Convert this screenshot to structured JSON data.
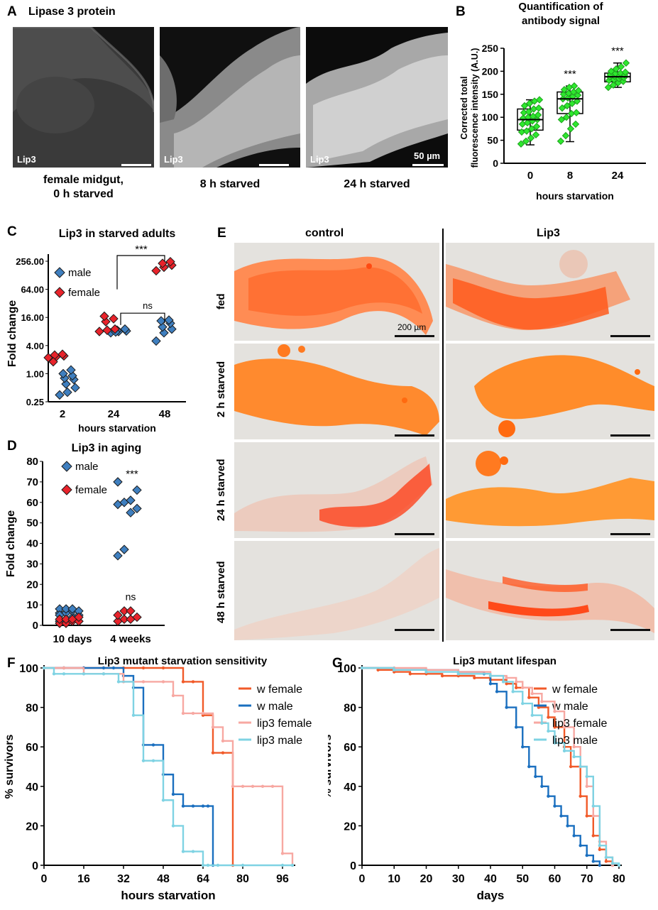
{
  "panelA": {
    "letter": "A",
    "title": "Lipase 3 protein",
    "image_tag": "Lip3",
    "scale_label": "50 µm",
    "captions": [
      "female midgut,",
      "0 h starved",
      "8 h starved",
      "24 h starved"
    ]
  },
  "panelE": {
    "letter": "E",
    "col_control": "control",
    "col_lip3": "Lip3",
    "rows": [
      "fed",
      "2 h starved",
      "24 h starved",
      "48 h starved"
    ],
    "scale_label": "200 µm"
  },
  "colors": {
    "green": "#2ee82e",
    "blue": "#3f7fbf",
    "red": "#e8232b",
    "w_female": "#f15a29",
    "w_male": "#1a6fbf",
    "lip3_female": "#f7a8a2",
    "lip3_male": "#7fd3e3"
  },
  "chart_data": [
    {
      "id": "B",
      "letter": "B",
      "type": "box",
      "title": "Quantification of antibody signal",
      "title_lines": [
        "Quantification of",
        "antibody signal"
      ],
      "ylabel_lines": [
        "Corrected total",
        "fluorescence intensity (A.U.)"
      ],
      "xlabel": "hours starvation",
      "categories": [
        "0",
        "8",
        "24"
      ],
      "ylim": [
        0,
        250
      ],
      "yticks": [
        0,
        50,
        100,
        150,
        200,
        250
      ],
      "boxes": [
        {
          "min": 40,
          "q1": 72,
          "median": 95,
          "q3": 118,
          "max": 138
        },
        {
          "min": 47,
          "q1": 108,
          "median": 140,
          "q3": 155,
          "max": 168
        },
        {
          "min": 165,
          "q1": 177,
          "median": 188,
          "q3": 196,
          "max": 218
        }
      ],
      "points": [
        [
          42,
          48,
          55,
          62,
          68,
          70,
          75,
          80,
          85,
          88,
          92,
          95,
          98,
          100,
          102,
          105,
          110,
          112,
          118,
          120,
          125,
          130,
          135,
          138
        ],
        [
          48,
          60,
          75,
          85,
          95,
          100,
          108,
          110,
          120,
          125,
          130,
          135,
          140,
          142,
          145,
          148,
          150,
          152,
          155,
          158,
          160,
          165,
          168
        ],
        [
          165,
          170,
          175,
          178,
          180,
          182,
          184,
          186,
          188,
          189,
          190,
          192,
          193,
          195,
          196,
          198,
          200,
          205,
          210,
          218
        ]
      ],
      "annotations": [
        "",
        "***",
        "***"
      ]
    },
    {
      "id": "C",
      "letter": "C",
      "type": "scatter",
      "title": "Lip3 in starved adults",
      "ylabel": "Fold change",
      "xlabel": "hours starvation",
      "yscale": "log2",
      "ylim": [
        0.25,
        256
      ],
      "ytick_labels": [
        "0.25",
        "1.00",
        "4.00",
        "16.00",
        "64.00",
        "256.00"
      ],
      "yticks": [
        0.25,
        1,
        4,
        16,
        64,
        256
      ],
      "categories": [
        "2",
        "24",
        "48"
      ],
      "series": [
        {
          "name": "male",
          "values": [
            [
              0.35,
              0.4,
              0.5,
              0.6,
              0.75,
              0.8,
              0.9,
              1.0,
              1.2
            ],
            [
              7.5,
              8.0,
              8.2,
              8.5,
              9.0,
              7.8
            ],
            [
              5.0,
              7.5,
              9.0,
              10.0,
              12.0,
              13.5,
              14.0
            ]
          ]
        },
        {
          "name": "female",
          "values": [
            [
              2.2,
              2.3,
              2.4,
              2.5,
              2.6,
              1.8
            ],
            [
              8.0,
              8.5,
              9.0,
              13.0,
              15.0,
              17.0
            ],
            [
              160,
              190,
              210,
              230,
              250
            ]
          ]
        }
      ],
      "legend": [
        "male",
        "female"
      ],
      "annotations": [
        "***",
        "ns"
      ]
    },
    {
      "id": "D",
      "letter": "D",
      "type": "scatter",
      "title": "Lip3 in aging",
      "ylabel": "Fold change",
      "xlabel": "",
      "ylim": [
        0,
        80
      ],
      "yticks": [
        0,
        10,
        20,
        30,
        40,
        50,
        60,
        70,
        80
      ],
      "categories": [
        "10 days",
        "4 weeks"
      ],
      "series": [
        {
          "name": "male",
          "values": [
            [
              2,
              3,
              4,
              5,
              6,
              6,
              7,
              7,
              8,
              8,
              8,
              2,
              5
            ],
            [
              34,
              37,
              55,
              57,
              59,
              60,
              61,
              66,
              70
            ]
          ]
        },
        {
          "name": "female",
          "values": [
            [
              1,
              1,
              2,
              2,
              3,
              3,
              3,
              4
            ],
            [
              2,
              3,
              3,
              4,
              5,
              7,
              7
            ]
          ]
        }
      ],
      "legend": [
        "male",
        "female"
      ],
      "annotations": [
        "***",
        "ns"
      ]
    },
    {
      "id": "F",
      "letter": "F",
      "type": "line",
      "title": "Lip3 mutant starvation sensitivity",
      "ylabel": "% survivors",
      "xlabel": "hours starvation",
      "xlim": [
        0,
        100
      ],
      "ylim": [
        0,
        100
      ],
      "xticks": [
        0,
        16,
        32,
        48,
        64,
        80,
        96
      ],
      "yticks": [
        0,
        20,
        40,
        60,
        80,
        100
      ],
      "series": [
        {
          "name": "w female",
          "x": [
            0,
            8,
            16,
            24,
            32,
            40,
            48,
            56,
            60,
            64,
            68,
            72,
            76
          ],
          "y": [
            100,
            100,
            100,
            100,
            100,
            100,
            100,
            93,
            93,
            76,
            57,
            57,
            0
          ]
        },
        {
          "name": "w male",
          "x": [
            0,
            8,
            16,
            24,
            28,
            32,
            36,
            40,
            44,
            48,
            52,
            56,
            60,
            64,
            66,
            68
          ],
          "y": [
            100,
            100,
            100,
            100,
            100,
            96,
            90,
            61,
            61,
            46,
            36,
            30,
            30,
            30,
            30,
            0
          ]
        },
        {
          "name": "lip3 female",
          "x": [
            0,
            8,
            16,
            24,
            32,
            40,
            48,
            52,
            56,
            60,
            64,
            68,
            72,
            76,
            80,
            84,
            88,
            92,
            96,
            100
          ],
          "y": [
            100,
            100,
            97,
            97,
            93,
            93,
            93,
            86,
            77,
            77,
            77,
            70,
            63,
            40,
            40,
            40,
            40,
            40,
            6,
            0
          ]
        },
        {
          "name": "lip3 male",
          "x": [
            0,
            4,
            8,
            16,
            24,
            30,
            36,
            40,
            44,
            48,
            52,
            56,
            60,
            64,
            66,
            70,
            80,
            96,
            100
          ],
          "y": [
            100,
            97,
            97,
            97,
            97,
            93,
            76,
            53,
            53,
            33,
            20,
            7,
            7,
            0,
            0,
            0,
            0,
            0,
            0
          ]
        }
      ]
    },
    {
      "id": "G",
      "letter": "G",
      "type": "line",
      "title": "Lip3 mutant lifespan",
      "ylabel": "% survivors",
      "xlabel": "days",
      "xlim": [
        0,
        80
      ],
      "ylim": [
        0,
        100
      ],
      "xticks": [
        0,
        10,
        20,
        30,
        40,
        50,
        60,
        70,
        80
      ],
      "yticks": [
        0,
        20,
        40,
        60,
        80,
        100
      ],
      "series": [
        {
          "name": "w female",
          "x": [
            0,
            5,
            10,
            15,
            20,
            25,
            30,
            35,
            40,
            45,
            48,
            52,
            55,
            58,
            60,
            63,
            65,
            68,
            70,
            72,
            74,
            76,
            78
          ],
          "y": [
            100,
            99,
            98,
            97,
            97,
            96,
            96,
            95,
            94,
            92,
            90,
            85,
            80,
            75,
            70,
            60,
            50,
            35,
            25,
            15,
            8,
            2,
            0
          ]
        },
        {
          "name": "w male",
          "x": [
            0,
            10,
            20,
            30,
            38,
            40,
            42,
            45,
            48,
            50,
            52,
            54,
            56,
            58,
            60,
            62,
            64,
            66,
            68,
            70,
            72,
            74
          ],
          "y": [
            100,
            99,
            99,
            98,
            97,
            92,
            88,
            80,
            70,
            60,
            50,
            45,
            40,
            35,
            30,
            25,
            20,
            15,
            10,
            5,
            2,
            0
          ]
        },
        {
          "name": "lip3 female",
          "x": [
            0,
            10,
            20,
            30,
            40,
            45,
            48,
            50,
            53,
            56,
            60,
            63,
            66,
            68,
            70,
            72,
            74,
            76,
            78
          ],
          "y": [
            100,
            100,
            99,
            98,
            96,
            95,
            93,
            90,
            87,
            83,
            78,
            70,
            60,
            50,
            40,
            25,
            12,
            4,
            0
          ]
        },
        {
          "name": "lip3 male",
          "x": [
            0,
            10,
            20,
            30,
            40,
            44,
            47,
            50,
            53,
            56,
            58,
            60,
            63,
            66,
            68,
            70,
            72,
            74,
            76,
            78,
            80
          ],
          "y": [
            100,
            99,
            98,
            97,
            96,
            93,
            88,
            82,
            76,
            72,
            68,
            62,
            58,
            55,
            50,
            45,
            30,
            10,
            4,
            1,
            0
          ]
        }
      ]
    }
  ]
}
